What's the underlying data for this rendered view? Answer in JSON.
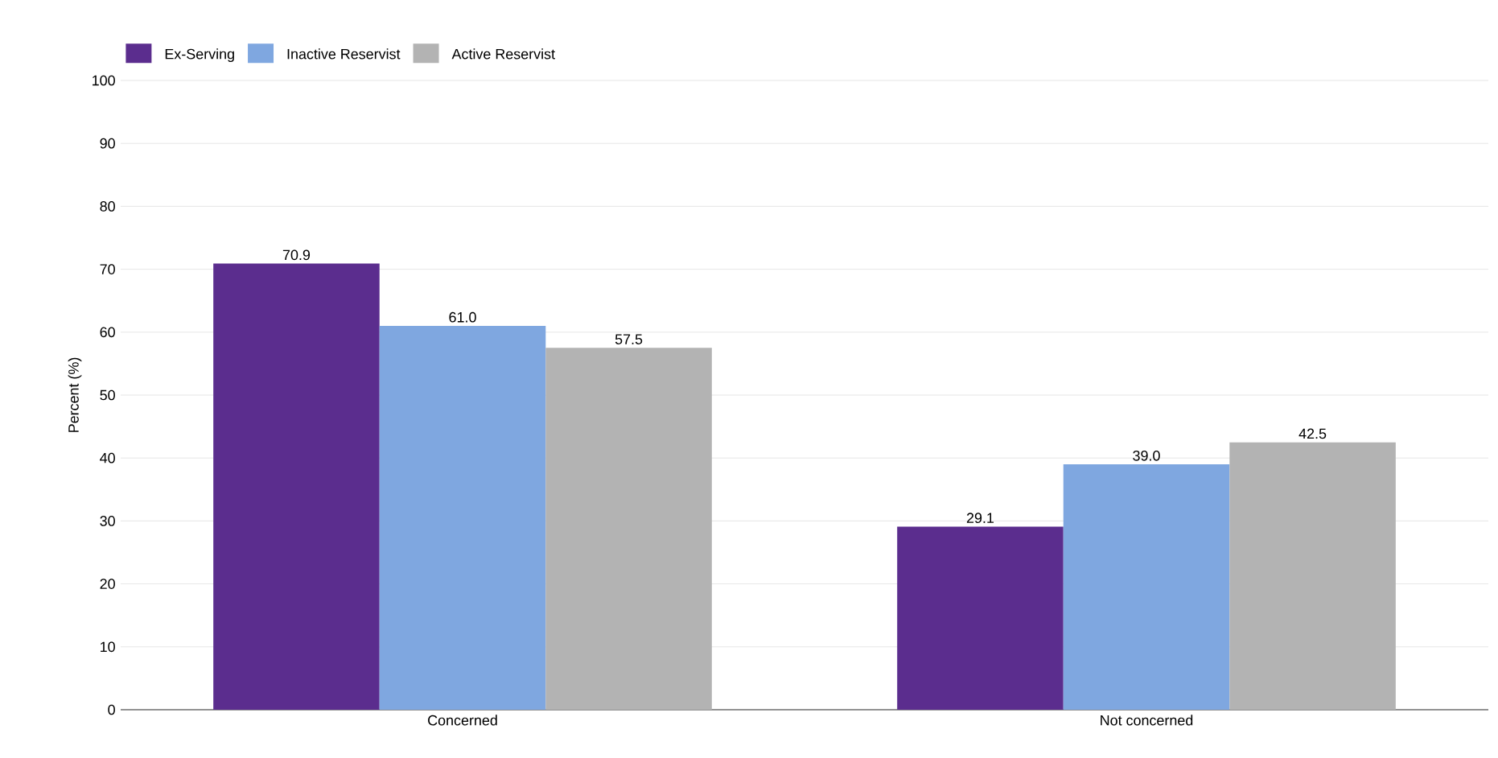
{
  "chart_data": {
    "type": "bar",
    "ylabel": "Percent (%)",
    "categories": [
      "Concerned",
      "Not concerned"
    ],
    "series": [
      {
        "name": "Ex-Serving",
        "color": "#5b2d8e",
        "values": [
          70.9,
          29.1
        ],
        "value_labels": [
          "70.9",
          "29.1"
        ]
      },
      {
        "name": "Inactive Reservist",
        "color": "#7fa7e0",
        "values": [
          61.0,
          39.0
        ],
        "value_labels": [
          "61.0",
          "39.0"
        ]
      },
      {
        "name": "Active Reservist",
        "color": "#b3b3b3",
        "values": [
          57.5,
          42.5
        ],
        "value_labels": [
          "57.5",
          "42.5"
        ]
      }
    ],
    "ylim": [
      0,
      100
    ],
    "yticks": [
      0,
      10,
      20,
      30,
      40,
      50,
      60,
      70,
      80,
      90,
      100
    ],
    "grid": "y",
    "legend": "top left"
  }
}
